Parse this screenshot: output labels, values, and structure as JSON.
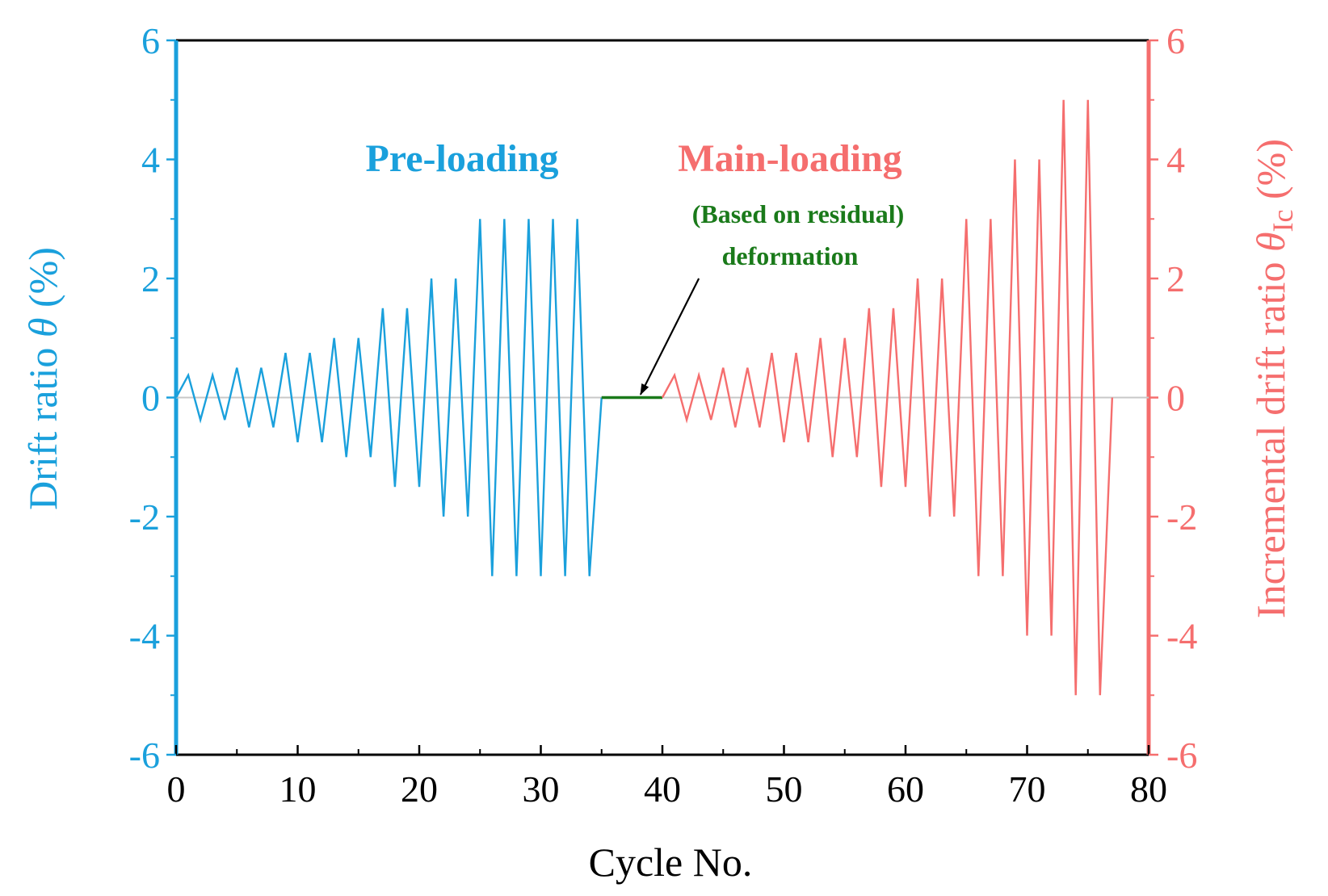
{
  "chart_data": {
    "type": "line",
    "xlabel": "Cycle No.",
    "ylabel_left": {
      "text": "Drift ratio ",
      "symbol": "θ",
      "unit": " (%)"
    },
    "ylabel_right": {
      "text": "Incremental drift ratio ",
      "symbol": "θ",
      "subscript": "Ic",
      "unit": " (%)"
    },
    "xlim": [
      0,
      80
    ],
    "ylim_left": [
      -6,
      6
    ],
    "ylim_right": [
      -6,
      6
    ],
    "x_ticks": [
      "0",
      "10",
      "20",
      "30",
      "40",
      "50",
      "60",
      "70",
      "80"
    ],
    "y_ticks_left": [
      "-6",
      "-4",
      "-2",
      "0",
      "2",
      "4",
      "6"
    ],
    "y_ticks_right": [
      "-6",
      "-4",
      "-2",
      "0",
      "2",
      "4",
      "6"
    ],
    "grid": false,
    "zero_line": true,
    "colors": {
      "pre": "#1aa0dc",
      "main": "#f56e6e",
      "residual": "#1a7a1a",
      "zero": "#c8c8c8",
      "frame": "#000000"
    },
    "series": [
      {
        "axis": "left",
        "x": [
          0,
          1,
          2,
          3,
          4,
          5,
          6,
          7,
          8,
          9,
          10,
          11,
          12,
          13,
          14,
          15,
          16,
          17,
          18,
          19,
          20,
          21,
          22,
          23,
          24,
          25,
          26,
          27,
          28,
          29,
          30,
          31,
          32,
          33,
          34,
          35
        ],
        "y": [
          0,
          0.375,
          -0.375,
          0.375,
          -0.375,
          0.5,
          -0.5,
          0.5,
          -0.5,
          0.75,
          -0.75,
          0.75,
          -0.75,
          1.0,
          -1.0,
          1.0,
          -1.0,
          1.5,
          -1.5,
          1.5,
          -1.5,
          2.0,
          -2.0,
          2.0,
          -2.0,
          3.0,
          -3.0,
          3.0,
          -3.0,
          3.0,
          -3.0,
          3.0,
          -3.0,
          3.0,
          -3.0,
          0
        ]
      },
      {
        "axis": "left",
        "x": [
          35,
          40
        ],
        "y": [
          0,
          0
        ]
      },
      {
        "axis": "right",
        "x": [
          40,
          41,
          42,
          43,
          44,
          45,
          46,
          47,
          48,
          49,
          50,
          51,
          52,
          53,
          54,
          55,
          56,
          57,
          58,
          59,
          60,
          61,
          62,
          63,
          64,
          65,
          66,
          67,
          68,
          69,
          70,
          71,
          72,
          73,
          74,
          75,
          76,
          77
        ],
        "y": [
          0,
          0.375,
          -0.375,
          0.375,
          -0.375,
          0.5,
          -0.5,
          0.5,
          -0.5,
          0.75,
          -0.75,
          0.75,
          -0.75,
          1.0,
          -1.0,
          1.0,
          -1.0,
          1.5,
          -1.5,
          1.5,
          -1.5,
          2.0,
          -2.0,
          2.0,
          -2.0,
          3.0,
          -3.0,
          3.0,
          -3.0,
          4.0,
          -4.0,
          4.0,
          -4.0,
          5.0,
          -5.0,
          5.0,
          -5.0,
          0
        ]
      }
    ],
    "annotations": {
      "pre_loading": "Pre-loading",
      "main_loading": "Main-loading",
      "residual_line1": "(Based on residual)",
      "residual_line2": "deformation"
    },
    "arrow": {
      "from": [
        43,
        2.0
      ],
      "to": [
        38.2,
        0.05
      ]
    }
  }
}
